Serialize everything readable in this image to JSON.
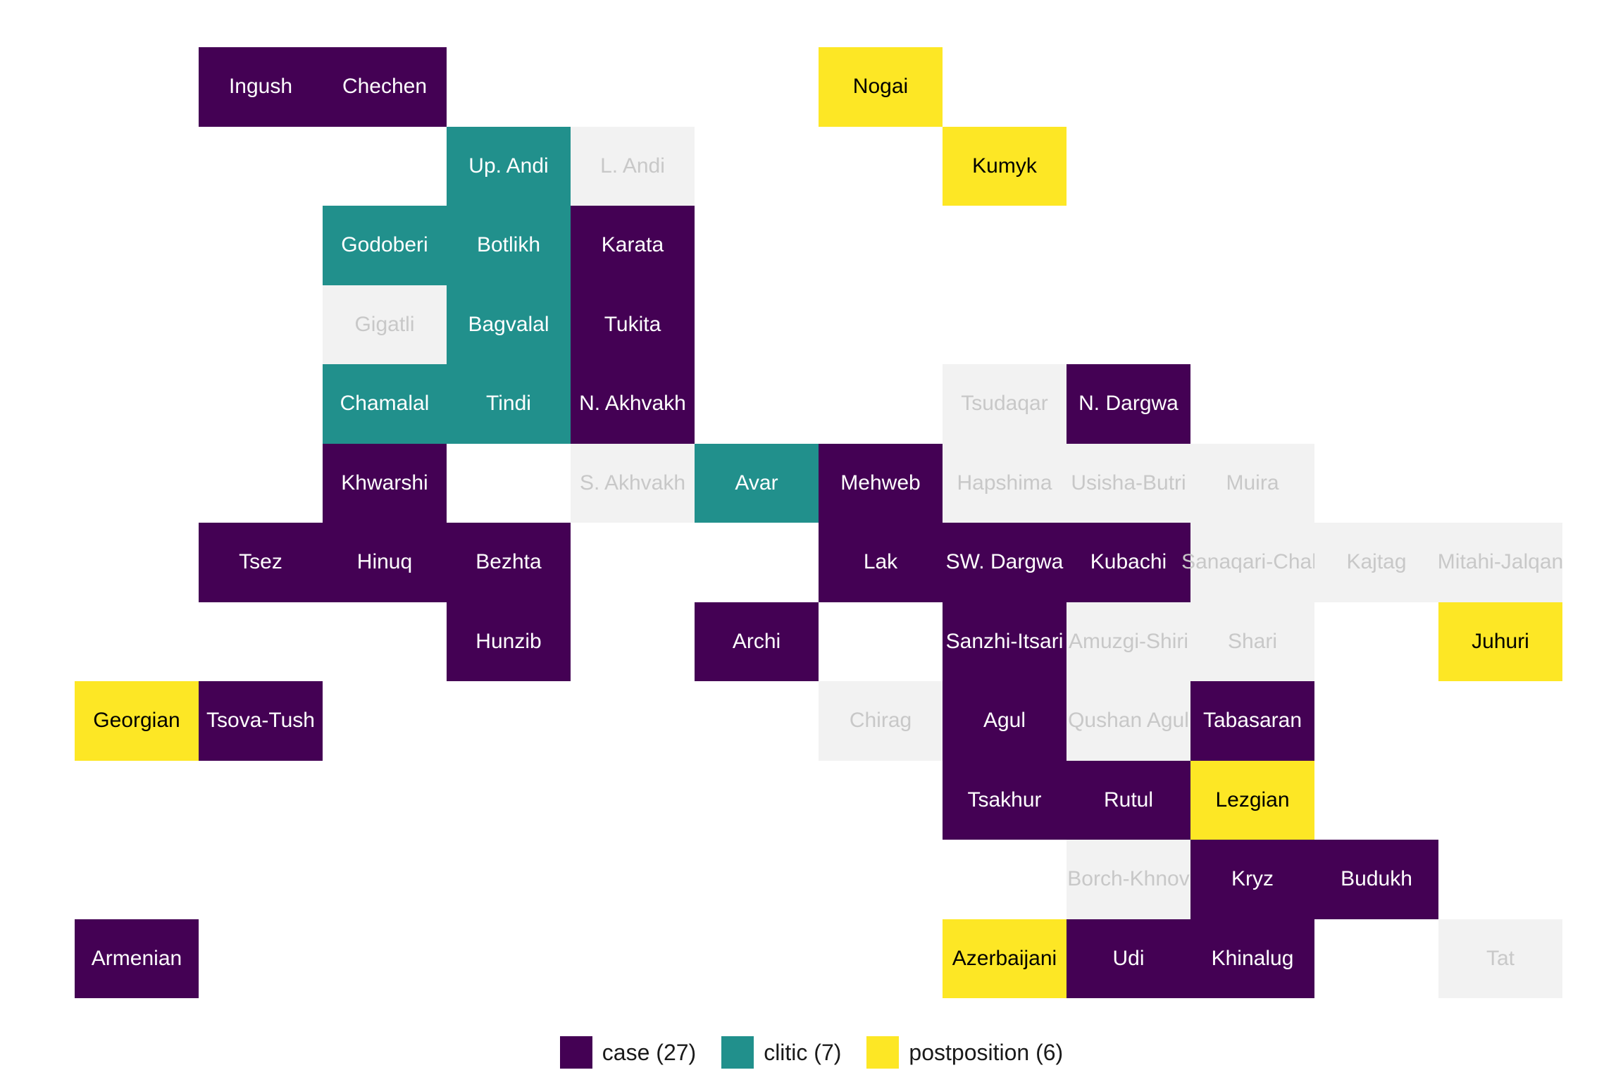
{
  "chart_data": {
    "type": "tile-grid",
    "title": "",
    "categories": [
      {
        "key": "case",
        "label": "case (27)",
        "color": "#440154",
        "text_color": "#ffffff"
      },
      {
        "key": "clitic",
        "label": "clitic (7)",
        "color": "#21908C",
        "text_color": "#ffffff"
      },
      {
        "key": "postposition",
        "label": "postposition (6)",
        "color": "#FDE725",
        "text_color": "#000000"
      }
    ],
    "na_style": {
      "color": "#F2F2F2",
      "text_color": "#C8C8C8"
    },
    "legend_position": "bottom",
    "grid": {
      "columns": 12,
      "rows": 12
    },
    "tiles": [
      {
        "name": "Ingush",
        "col": 1,
        "row": 0,
        "value": "case"
      },
      {
        "name": "Chechen",
        "col": 2,
        "row": 0,
        "value": "case"
      },
      {
        "name": "Nogai",
        "col": 6,
        "row": 0,
        "value": "postposition"
      },
      {
        "name": "Up. Andi",
        "col": 3,
        "row": 1,
        "value": "clitic"
      },
      {
        "name": "L. Andi",
        "col": 4,
        "row": 1,
        "value": null
      },
      {
        "name": "Kumyk",
        "col": 7,
        "row": 1,
        "value": "postposition"
      },
      {
        "name": "Godoberi",
        "col": 2,
        "row": 2,
        "value": "clitic"
      },
      {
        "name": "Botlikh",
        "col": 3,
        "row": 2,
        "value": "clitic"
      },
      {
        "name": "Karata",
        "col": 4,
        "row": 2,
        "value": "case"
      },
      {
        "name": "Gigatli",
        "col": 2,
        "row": 3,
        "value": null
      },
      {
        "name": "Bagvalal",
        "col": 3,
        "row": 3,
        "value": "clitic"
      },
      {
        "name": "Tukita",
        "col": 4,
        "row": 3,
        "value": "case"
      },
      {
        "name": "Chamalal",
        "col": 2,
        "row": 4,
        "value": "clitic"
      },
      {
        "name": "Tindi",
        "col": 3,
        "row": 4,
        "value": "clitic"
      },
      {
        "name": "N. Akhvakh",
        "col": 4,
        "row": 4,
        "value": "case"
      },
      {
        "name": "Tsudaqar",
        "col": 7,
        "row": 4,
        "value": null
      },
      {
        "name": "N. Dargwa",
        "col": 8,
        "row": 4,
        "value": "case"
      },
      {
        "name": "Khwarshi",
        "col": 2,
        "row": 5,
        "value": "case"
      },
      {
        "name": "S. Akhvakh",
        "col": 4,
        "row": 5,
        "value": null
      },
      {
        "name": "Avar",
        "col": 5,
        "row": 5,
        "value": "clitic"
      },
      {
        "name": "Mehweb",
        "col": 6,
        "row": 5,
        "value": "case"
      },
      {
        "name": "Hapshima",
        "col": 7,
        "row": 5,
        "value": null
      },
      {
        "name": "Usisha-Butri",
        "col": 8,
        "row": 5,
        "value": null
      },
      {
        "name": "Muira",
        "col": 9,
        "row": 5,
        "value": null
      },
      {
        "name": "Tsez",
        "col": 1,
        "row": 6,
        "value": "case"
      },
      {
        "name": "Hinuq",
        "col": 2,
        "row": 6,
        "value": "case"
      },
      {
        "name": "Bezhta",
        "col": 3,
        "row": 6,
        "value": "case"
      },
      {
        "name": "Lak",
        "col": 6,
        "row": 6,
        "value": "case"
      },
      {
        "name": "SW. Dargwa",
        "col": 7,
        "row": 6,
        "value": "case"
      },
      {
        "name": "Kubachi",
        "col": 8,
        "row": 6,
        "value": "case"
      },
      {
        "name": "Sanaqari-Chah",
        "col": 9,
        "row": 6,
        "value": null
      },
      {
        "name": "Kajtag",
        "col": 10,
        "row": 6,
        "value": null
      },
      {
        "name": "Mitahi-Jalqan",
        "col": 11,
        "row": 6,
        "value": null
      },
      {
        "name": "Hunzib",
        "col": 3,
        "row": 7,
        "value": "case"
      },
      {
        "name": "Archi",
        "col": 5,
        "row": 7,
        "value": "case"
      },
      {
        "name": "Sanzhi-Itsari",
        "col": 7,
        "row": 7,
        "value": "case"
      },
      {
        "name": "Amuzgi-Shiri",
        "col": 8,
        "row": 7,
        "value": null
      },
      {
        "name": "Shari",
        "col": 9,
        "row": 7,
        "value": null
      },
      {
        "name": "Juhuri",
        "col": 11,
        "row": 7,
        "value": "postposition"
      },
      {
        "name": "Georgian",
        "col": 0,
        "row": 8,
        "value": "postposition"
      },
      {
        "name": "Tsova-Tush",
        "col": 1,
        "row": 8,
        "value": "case"
      },
      {
        "name": "Chirag",
        "col": 6,
        "row": 8,
        "value": null
      },
      {
        "name": "Agul",
        "col": 7,
        "row": 8,
        "value": "case"
      },
      {
        "name": "Qushan Agul",
        "col": 8,
        "row": 8,
        "value": null
      },
      {
        "name": "Tabasaran",
        "col": 9,
        "row": 8,
        "value": "case"
      },
      {
        "name": "Tsakhur",
        "col": 7,
        "row": 9,
        "value": "case"
      },
      {
        "name": "Rutul",
        "col": 8,
        "row": 9,
        "value": "case"
      },
      {
        "name": "Lezgian",
        "col": 9,
        "row": 9,
        "value": "postposition"
      },
      {
        "name": "Borch-Khnov",
        "col": 8,
        "row": 10,
        "value": null
      },
      {
        "name": "Kryz",
        "col": 9,
        "row": 10,
        "value": "case"
      },
      {
        "name": "Budukh",
        "col": 10,
        "row": 10,
        "value": "case"
      },
      {
        "name": "Armenian",
        "col": 0,
        "row": 11,
        "value": "case"
      },
      {
        "name": "Azerbaijani",
        "col": 7,
        "row": 11,
        "value": "postposition"
      },
      {
        "name": "Udi",
        "col": 8,
        "row": 11,
        "value": "case"
      },
      {
        "name": "Khinalug",
        "col": 9,
        "row": 11,
        "value": "case"
      },
      {
        "name": "Tat",
        "col": 11,
        "row": 11,
        "value": null
      }
    ]
  }
}
